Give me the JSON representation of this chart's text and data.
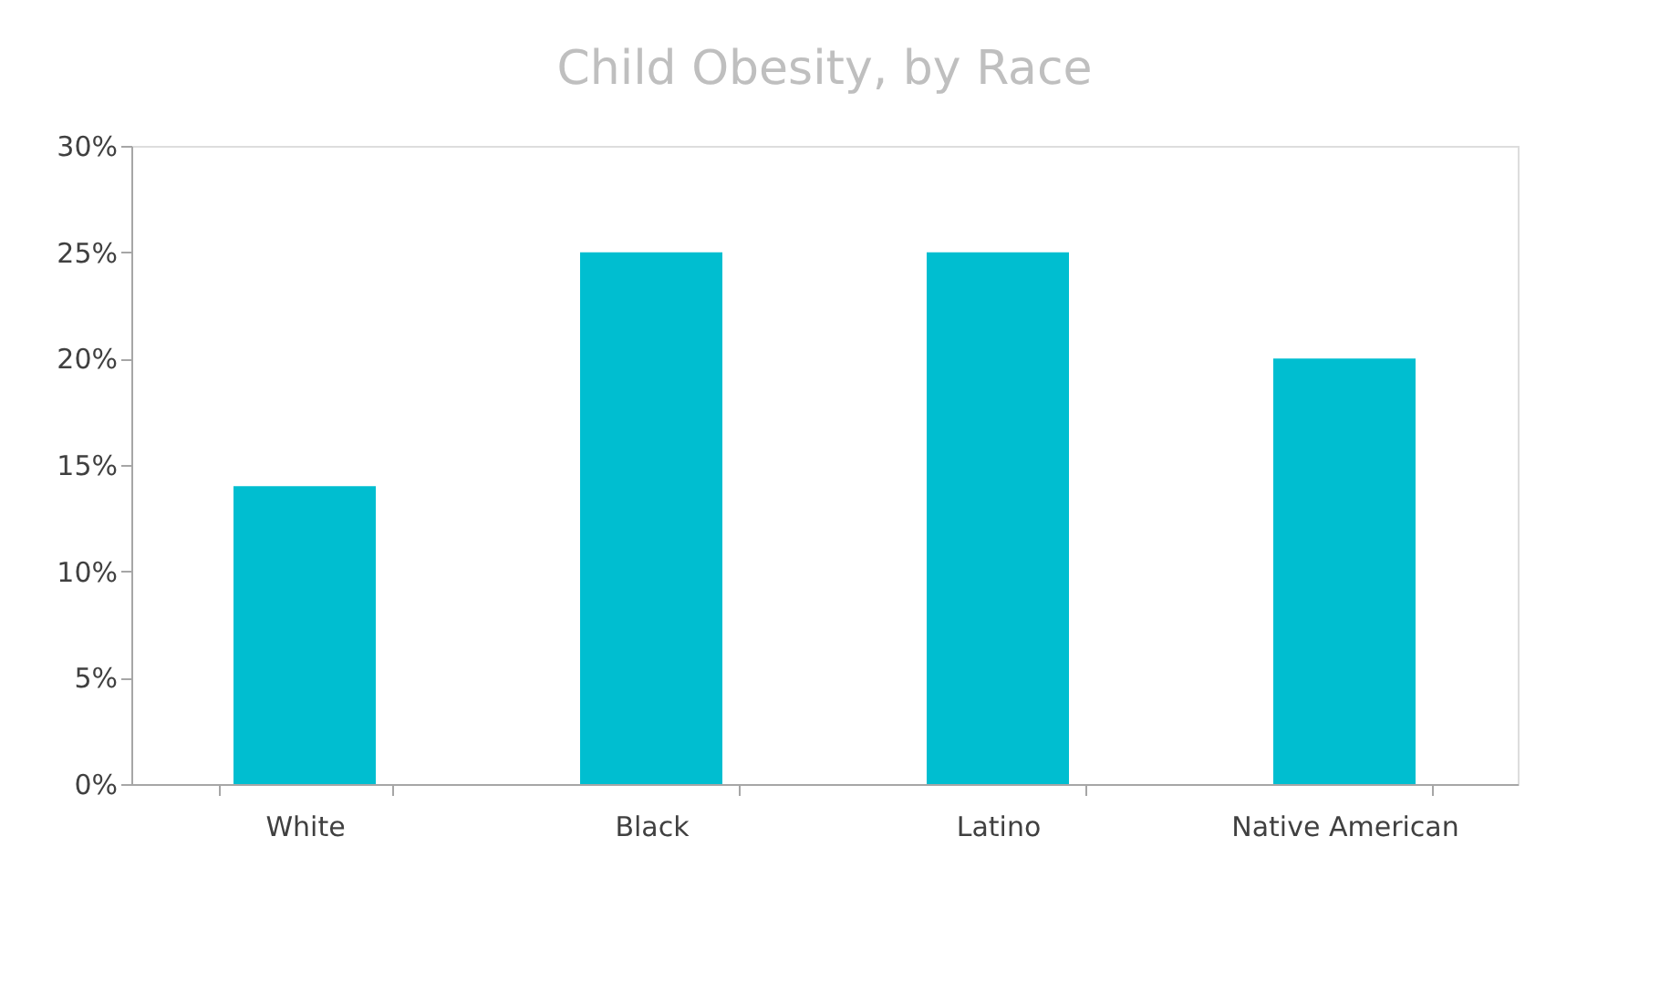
{
  "chart_data": {
    "type": "bar",
    "title": "Child Obesity, by Race",
    "categories": [
      "White",
      "Black",
      "Latino",
      "Native American"
    ],
    "values": [
      14,
      25,
      25,
      20
    ],
    "color": "#00bed0",
    "ylim": [
      0,
      30
    ],
    "yticks": [
      {
        "value": 0,
        "label": "0%"
      },
      {
        "value": 5,
        "label": "5%"
      },
      {
        "value": 10,
        "label": "10%"
      },
      {
        "value": 15,
        "label": "15%"
      },
      {
        "value": 20,
        "label": "20%"
      },
      {
        "value": 25,
        "label": "25%"
      },
      {
        "value": 30,
        "label": "30%"
      }
    ],
    "grid": false
  }
}
